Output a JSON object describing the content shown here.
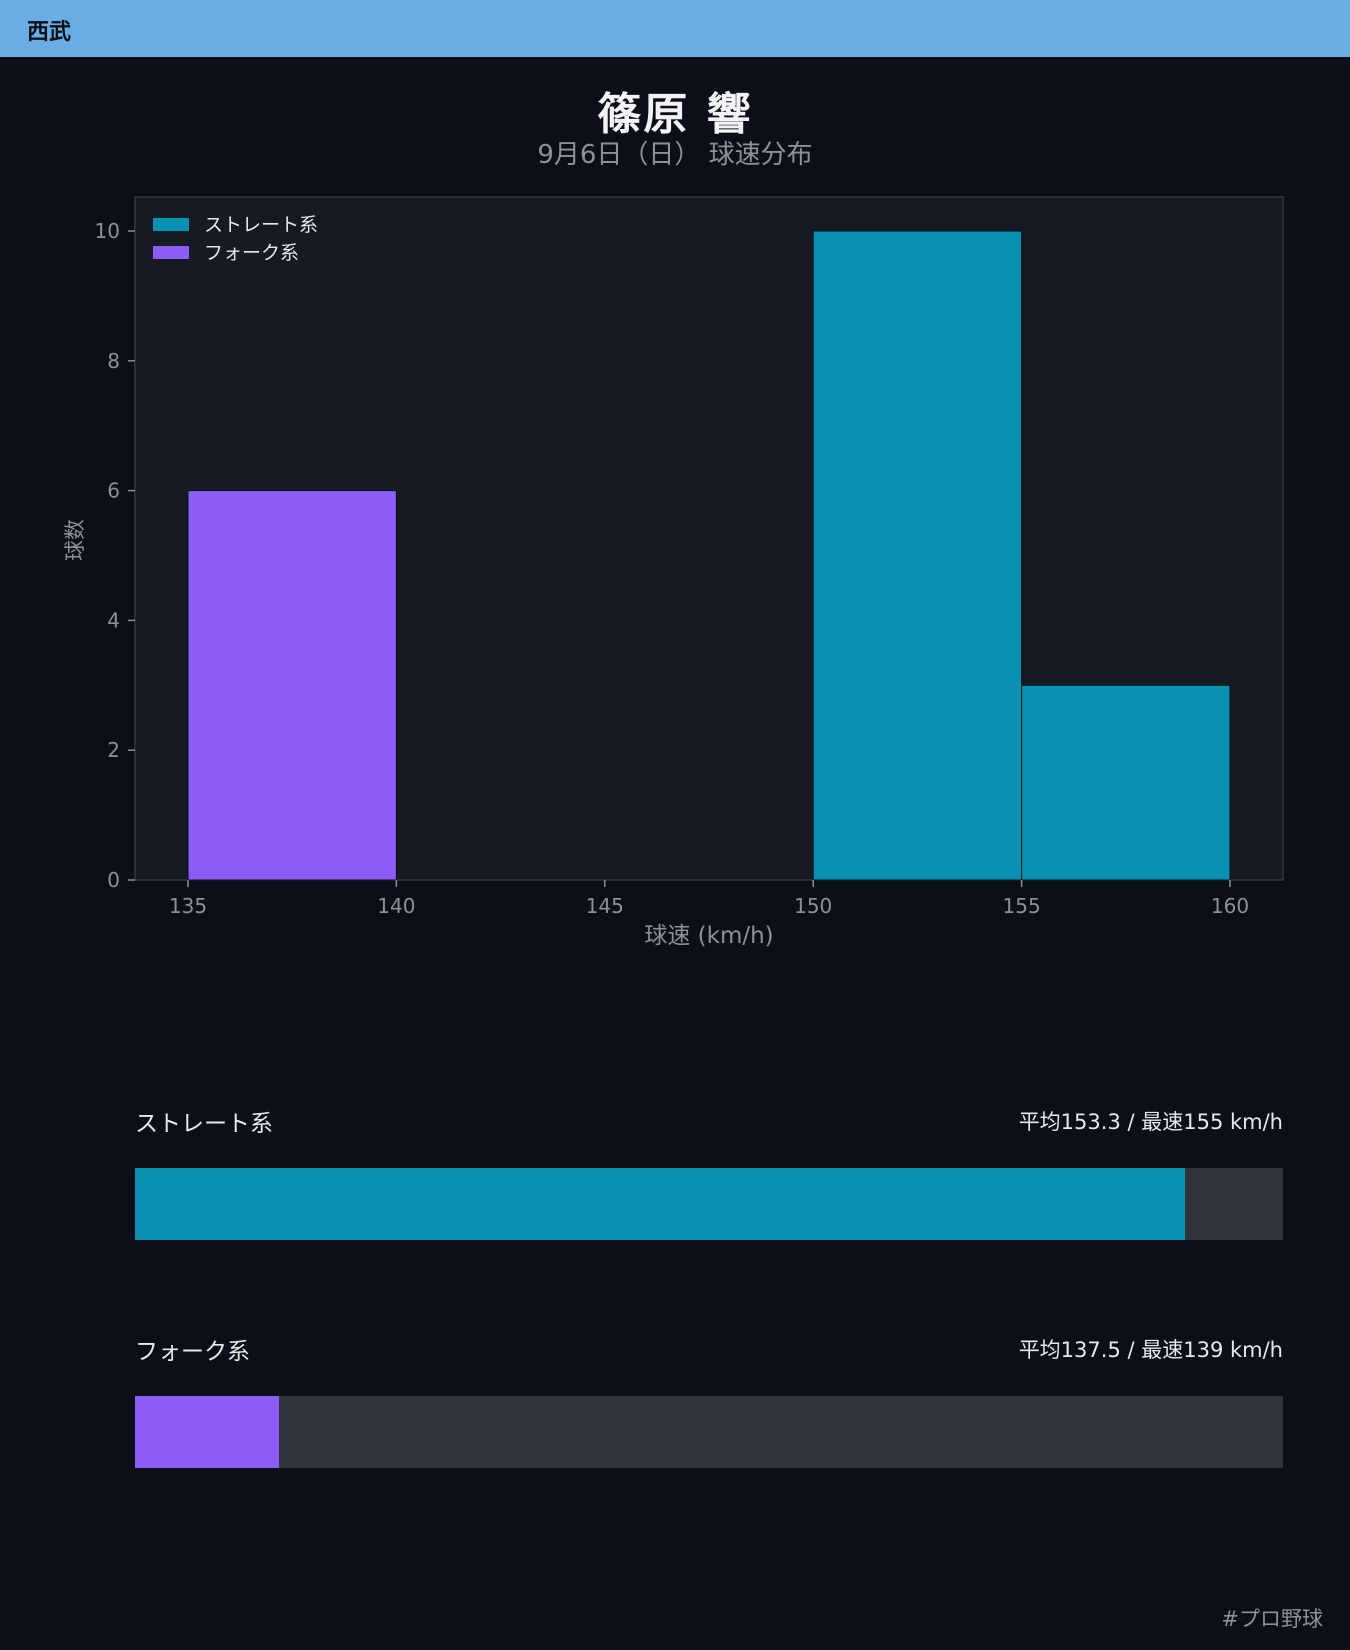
{
  "header": {
    "team": "西武"
  },
  "chart_data": {
    "type": "bar",
    "title": "篠原 響",
    "subtitle": "9月6日（日） 球速分布",
    "xlabel": "球速 (km/h)",
    "ylabel": "球数",
    "xlim": [
      135,
      160
    ],
    "ylim": [
      0,
      10
    ],
    "xticks": [
      135,
      140,
      145,
      150,
      155,
      160
    ],
    "yticks": [
      0,
      2,
      4,
      6,
      8,
      10
    ],
    "bin_width": 5,
    "legend": "top-left",
    "grid": false,
    "series": [
      {
        "name": "ストレート系",
        "color": "#0891b2",
        "bins": [
          {
            "start": 150,
            "count": 10
          },
          {
            "start": 155,
            "count": 3
          }
        ]
      },
      {
        "name": "フォーク系",
        "color": "#8b5cf6",
        "bins": [
          {
            "start": 135,
            "count": 6
          }
        ]
      }
    ]
  },
  "stats": [
    {
      "label": "ストレート系",
      "text": "平均153.3 / 最速155 km/h",
      "share": 0.915,
      "color": "#0891b2"
    },
    {
      "label": "フォーク系",
      "text": "平均137.5 / 最速139 km/h",
      "share": 0.125,
      "color": "#8b5cf6"
    }
  ],
  "footer": {
    "hashtag": "#プロ野球"
  }
}
